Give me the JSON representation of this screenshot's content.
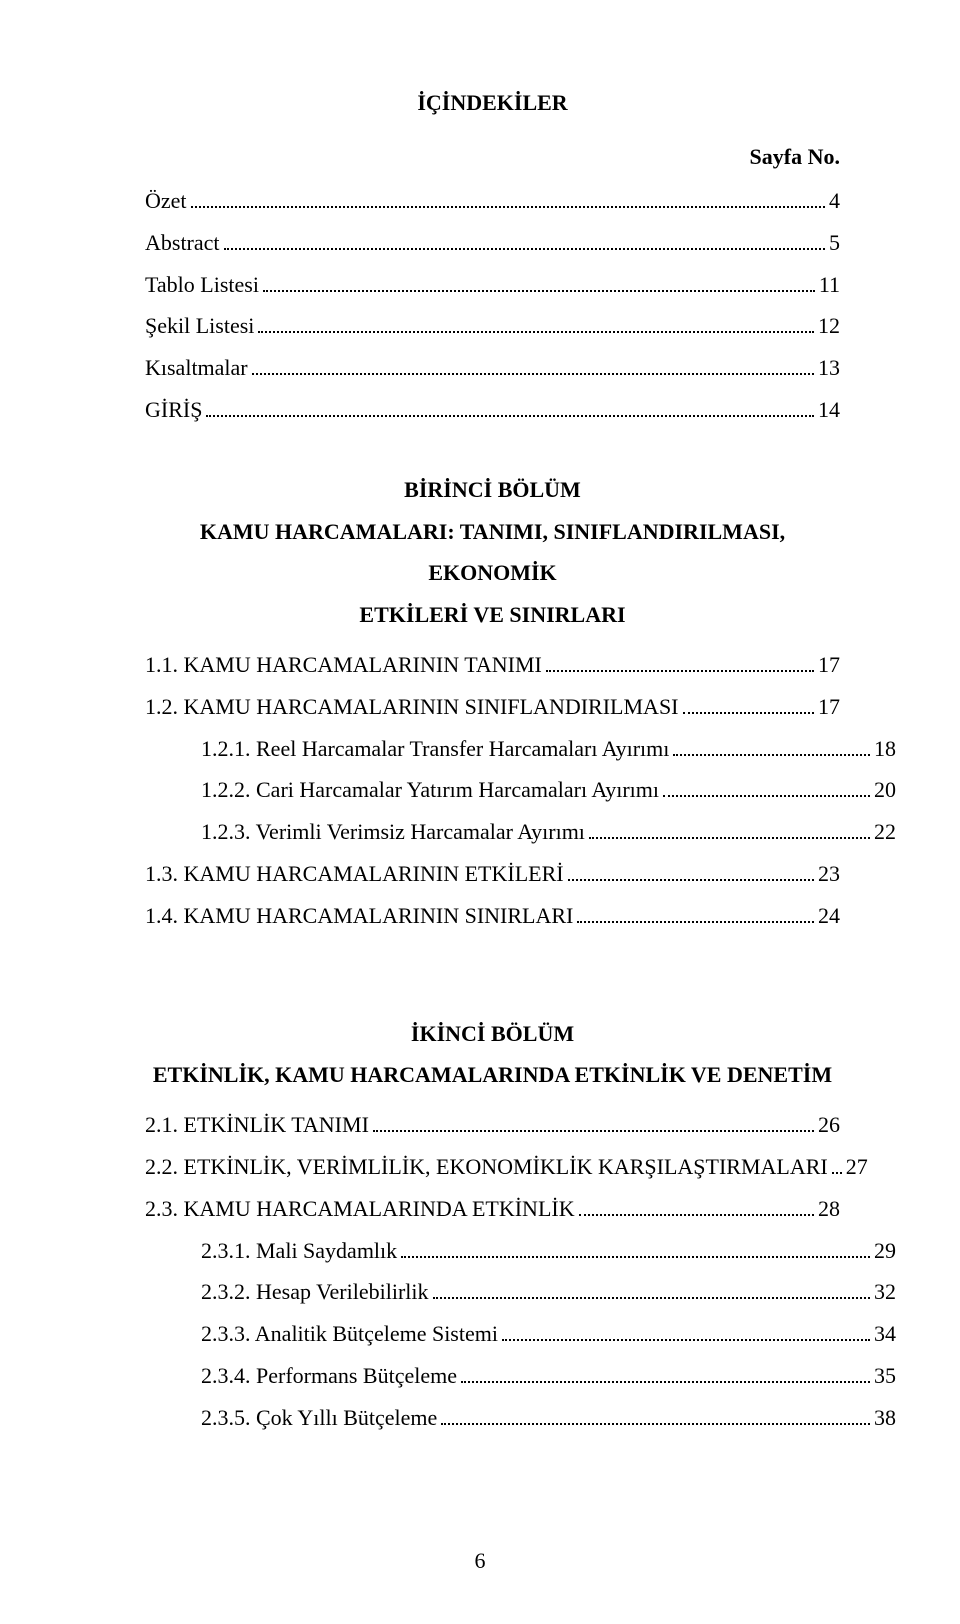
{
  "title": "İÇİNDEKİLER",
  "page_label": "Sayfa No.",
  "page_number": "6",
  "front": [
    {
      "label": "Özet",
      "page": "4"
    },
    {
      "label": "Abstract",
      "page": "5"
    },
    {
      "label": "Tablo Listesi",
      "page": "11"
    },
    {
      "label": "Şekil Listesi",
      "page": "12"
    },
    {
      "label": "Kısaltmalar",
      "page": "13"
    },
    {
      "label": "GİRİŞ",
      "page": "14"
    }
  ],
  "ch1": {
    "heading1": "BİRİNCİ BÖLÜM",
    "heading2": "KAMU HARCAMALARI: TANIMI, SINIFLANDIRILMASI, EKONOMİK",
    "heading3": "ETKİLERİ VE SINIRLARI",
    "items": [
      {
        "label": "1.1. KAMU HARCAMALARININ TANIMI",
        "page": "17",
        "indent": 0
      },
      {
        "label": "1.2. KAMU HARCAMALARININ SINIFLANDIRILMASI",
        "page": "17",
        "indent": 0
      },
      {
        "label": "1.2.1. Reel Harcamalar Transfer Harcamaları Ayırımı",
        "page": "18",
        "indent": 1
      },
      {
        "label": "1.2.2. Cari Harcamalar Yatırım Harcamaları Ayırımı",
        "page": "20",
        "indent": 1
      },
      {
        "label": "1.2.3. Verimli Verimsiz Harcamalar Ayırımı",
        "page": "22",
        "indent": 1
      },
      {
        "label": "1.3. KAMU HARCAMALARININ ETKİLERİ",
        "page": "23",
        "indent": 0
      },
      {
        "label": "1.4. KAMU HARCAMALARININ SINIRLARI",
        "page": "24",
        "indent": 0
      }
    ]
  },
  "ch2": {
    "heading1": "İKİNCİ BÖLÜM",
    "heading2": "ETKİNLİK, KAMU HARCAMALARINDA ETKİNLİK VE DENETİM",
    "items": [
      {
        "label": "2.1. ETKİNLİK TANIMI",
        "page": "26",
        "indent": 0
      },
      {
        "label": "2.2. ETKİNLİK, VERİMLİLİK, EKONOMİKLİK KARŞILAŞTIRMALARI",
        "page": "27",
        "indent": 0
      },
      {
        "label": "2.3. KAMU HARCAMALARINDA ETKİNLİK",
        "page": "28",
        "indent": 0
      },
      {
        "label": "2.3.1. Mali Saydamlık",
        "page": "29",
        "indent": 1
      },
      {
        "label": "2.3.2. Hesap Verilebilirlik",
        "page": "32",
        "indent": 1
      },
      {
        "label": "2.3.3. Analitik Bütçeleme Sistemi",
        "page": "34",
        "indent": 1
      },
      {
        "label": "2.3.4. Performans Bütçeleme",
        "page": "35",
        "indent": 1
      },
      {
        "label": "2.3.5. Çok Yıllı Bütçeleme",
        "page": "38",
        "indent": 1
      }
    ]
  }
}
